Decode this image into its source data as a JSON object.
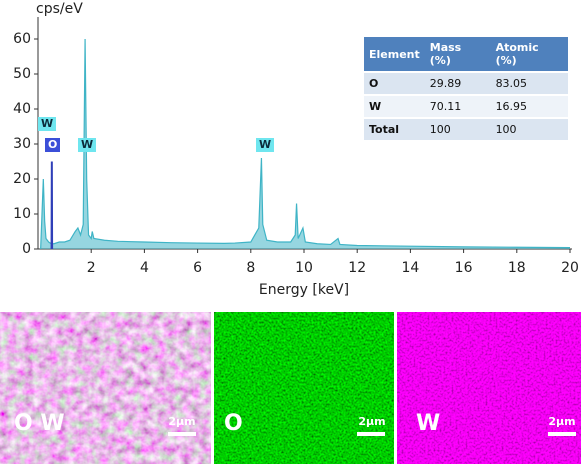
{
  "chart_data": {
    "type": "line",
    "y_label": "cps/eV",
    "x_label": "Energy [keV]",
    "x": [
      0.1,
      0.2,
      0.25,
      0.3,
      0.4,
      0.5,
      0.51,
      0.52,
      0.53,
      0.6,
      0.8,
      1.0,
      1.2,
      1.4,
      1.5,
      1.6,
      1.7,
      1.77,
      1.83,
      1.9,
      2.0,
      2.04,
      2.1,
      2.5,
      3,
      4,
      5,
      6,
      7,
      7.4,
      8.0,
      8.3,
      8.4,
      8.45,
      8.6,
      9.0,
      9.5,
      9.67,
      9.72,
      9.78,
      9.96,
      10.05,
      10.5,
      11.0,
      11.28,
      11.35,
      12,
      14,
      16,
      18,
      20
    ],
    "series": [
      {
        "color": "#3fb4c6",
        "values": [
          0,
          20,
          8,
          3,
          2,
          1.5,
          1.5,
          1.5,
          1.5,
          1.5,
          2,
          2,
          2.5,
          5,
          6,
          4,
          7,
          60,
          20,
          4,
          3,
          5,
          3,
          2.5,
          2.2,
          2,
          1.8,
          1.7,
          1.6,
          1.7,
          2,
          6,
          26,
          7,
          2.5,
          2,
          2,
          4,
          13,
          3,
          6,
          2,
          1.5,
          1.3,
          3,
          1.3,
          1,
          0.8,
          0.6,
          0.5,
          0.4
        ]
      },
      {
        "color": "#2f3fb8",
        "values": [
          null,
          null,
          null,
          null,
          null,
          null,
          0,
          25,
          0,
          null,
          null,
          null,
          null,
          null,
          null,
          null,
          null,
          null,
          null,
          null,
          null,
          null,
          null,
          null,
          null,
          null,
          null,
          null,
          null,
          null,
          null,
          null,
          null,
          null,
          null,
          null,
          null,
          null,
          null,
          null,
          null,
          null,
          null,
          null,
          null,
          null,
          null,
          null,
          null,
          null,
          null
        ]
      }
    ],
    "xlim": [
      0,
      20
    ],
    "ylim": [
      0,
      66
    ],
    "xticks": [
      2,
      4,
      6,
      8,
      10,
      12,
      14,
      16,
      18,
      20
    ],
    "yticks": [
      0,
      10,
      20,
      30,
      40,
      50,
      60
    ],
    "peak_labels": [
      "W",
      "O",
      "W",
      "W"
    ]
  },
  "table": {
    "header": [
      "Element",
      "Mass (%)",
      "Atomic (%)"
    ],
    "rows": [
      [
        "O",
        "29.89",
        "83.05"
      ],
      [
        "W",
        "70.11",
        "16.95"
      ],
      [
        "Total",
        "100",
        "100"
      ]
    ]
  },
  "maps": [
    {
      "label": "O W",
      "scale": "2μm"
    },
    {
      "label": "O",
      "scale": "2μm"
    },
    {
      "label": "W",
      "scale": "2μm"
    }
  ]
}
